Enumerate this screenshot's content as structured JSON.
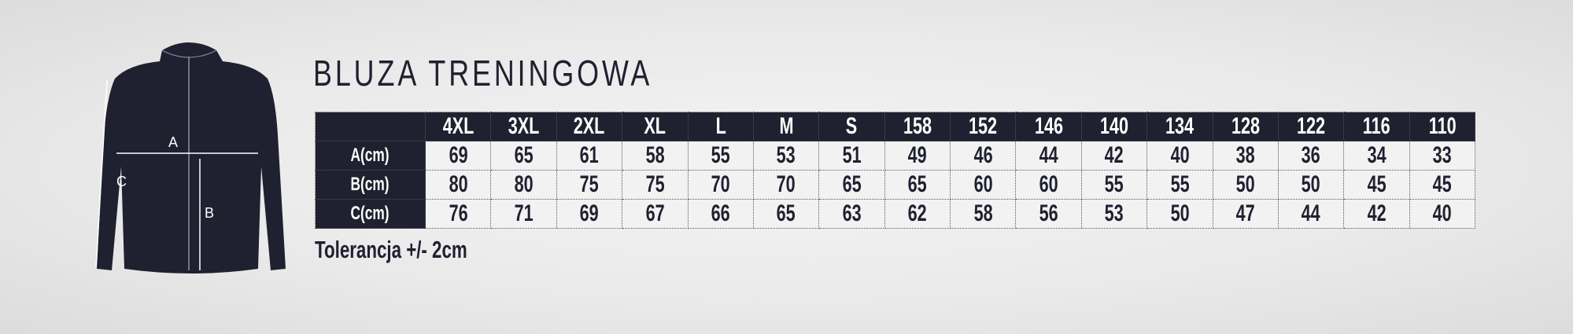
{
  "title": "BLUZA TRENINGOWA",
  "diagram_labels": {
    "a": "A",
    "b": "B",
    "c": "C"
  },
  "table": {
    "sizes": [
      "4XL",
      "3XL",
      "2XL",
      "XL",
      "L",
      "M",
      "S",
      "158",
      "152",
      "146",
      "140",
      "134",
      "128",
      "122",
      "116",
      "110"
    ],
    "rows": [
      {
        "label": "A(cm)",
        "values": [
          "69",
          "65",
          "61",
          "58",
          "55",
          "53",
          "51",
          "49",
          "46",
          "44",
          "42",
          "40",
          "38",
          "36",
          "34",
          "33"
        ]
      },
      {
        "label": "B(cm)",
        "values": [
          "80",
          "80",
          "75",
          "75",
          "70",
          "70",
          "65",
          "65",
          "60",
          "60",
          "55",
          "55",
          "50",
          "50",
          "45",
          "45"
        ]
      },
      {
        "label": "C(cm)",
        "values": [
          "76",
          "71",
          "69",
          "67",
          "66",
          "65",
          "63",
          "62",
          "58",
          "56",
          "53",
          "50",
          "47",
          "44",
          "42",
          "40"
        ]
      }
    ]
  },
  "tolerance": "Tolerancja +/- 2cm",
  "colors": {
    "navy": "#1f2130",
    "cell": "#f2f2f2"
  }
}
